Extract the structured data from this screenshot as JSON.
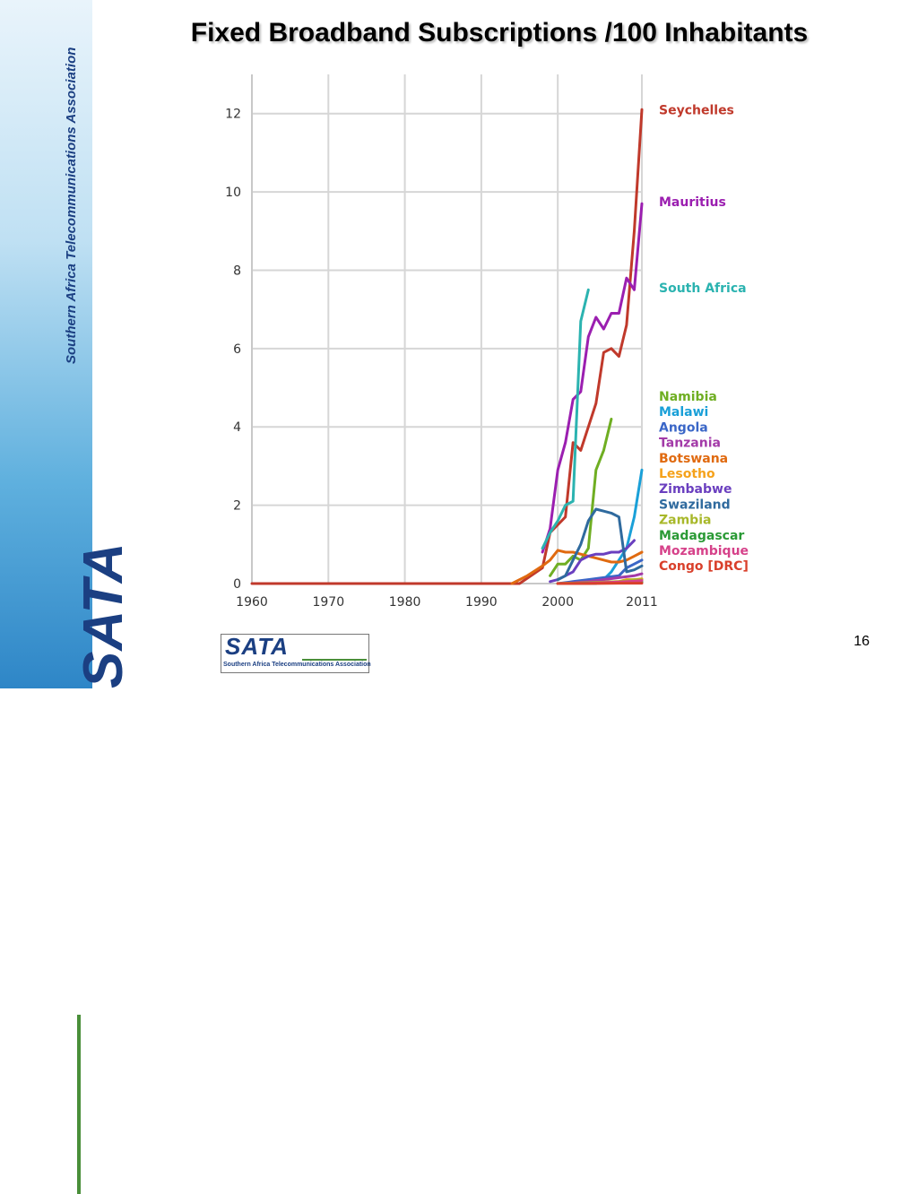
{
  "sidebar": {
    "organization_name": "Southern Africa Telecommunications Association",
    "logo_text": "SATA"
  },
  "slide": {
    "title": "Fixed Broadband Subscriptions /100 Inhabitants",
    "page_number": "16"
  },
  "footer_logo": {
    "text": "SATA",
    "subtitle": "Southern Africa Telecommunications Association"
  },
  "chart_data": {
    "type": "line",
    "title": "Fixed Broadband Subscriptions /100 Inhabitants",
    "xlabel": "",
    "ylabel": "",
    "xlim": [
      1960,
      2011
    ],
    "ylim": [
      0,
      13
    ],
    "x_ticks": [
      1960,
      1970,
      1980,
      1990,
      2000,
      2011
    ],
    "y_ticks": [
      0,
      2,
      4,
      6,
      8,
      10,
      12
    ],
    "grid": true,
    "legend_position": "right",
    "series": [
      {
        "name": "Seychelles",
        "color": "#c0392b",
        "x": [
          1960,
          1995,
          1998,
          1999,
          2000,
          2001,
          2002,
          2003,
          2004,
          2005,
          2006,
          2007,
          2008,
          2009,
          2010,
          2011
        ],
        "y": [
          0,
          0,
          0.4,
          1.3,
          1.5,
          1.7,
          3.6,
          3.4,
          4.0,
          4.6,
          5.9,
          6.0,
          5.8,
          6.6,
          9.0,
          12.1
        ]
      },
      {
        "name": "Mauritius",
        "color": "#9b1fb0",
        "x": [
          1998,
          1999,
          2000,
          2001,
          2002,
          2003,
          2004,
          2005,
          2006,
          2007,
          2008,
          2009,
          2010,
          2011
        ],
        "y": [
          0.8,
          1.4,
          2.9,
          3.6,
          4.7,
          4.9,
          6.3,
          6.8,
          6.5,
          6.9,
          6.9,
          7.8,
          7.5,
          9.7
        ]
      },
      {
        "name": "South Africa",
        "color": "#2bb3b0",
        "x": [
          1998,
          1999,
          2000,
          2001,
          2002,
          2003,
          2004
        ],
        "y": [
          0.9,
          1.3,
          1.6,
          2.0,
          2.1,
          6.7,
          7.5
        ]
      },
      {
        "name": "Namibia",
        "color": "#6fae22",
        "x": [
          1999,
          2000,
          2001,
          2002,
          2003,
          2004,
          2005,
          2006,
          2007
        ],
        "y": [
          0.2,
          0.5,
          0.5,
          0.7,
          0.6,
          0.9,
          2.9,
          3.4,
          4.2
        ]
      },
      {
        "name": "Malawi",
        "color": "#1aa0d8",
        "x": [
          2000,
          2005,
          2006,
          2007,
          2008,
          2009,
          2010,
          2011
        ],
        "y": [
          0.0,
          0.0,
          0.1,
          0.3,
          0.6,
          0.9,
          1.7,
          2.9
        ]
      },
      {
        "name": "Angola",
        "color": "#3a66c7",
        "x": [
          2000,
          2002,
          2004,
          2006,
          2008,
          2009,
          2010,
          2011
        ],
        "y": [
          0.0,
          0.05,
          0.1,
          0.15,
          0.2,
          0.4,
          0.5,
          0.6
        ]
      },
      {
        "name": "Tanzania",
        "color": "#a33aa8",
        "x": [
          2000,
          2002,
          2004,
          2006,
          2008,
          2010,
          2011
        ],
        "y": [
          0.0,
          0.02,
          0.05,
          0.1,
          0.15,
          0.2,
          0.25
        ]
      },
      {
        "name": "Botswana",
        "color": "#e06a10",
        "x": [
          1994,
          1996,
          1998,
          1999,
          2000,
          2001,
          2002,
          2003,
          2004,
          2005,
          2006,
          2007,
          2008,
          2009,
          2010,
          2011
        ],
        "y": [
          0,
          0.2,
          0.45,
          0.6,
          0.85,
          0.8,
          0.8,
          0.75,
          0.7,
          0.65,
          0.6,
          0.55,
          0.55,
          0.6,
          0.7,
          0.8
        ]
      },
      {
        "name": "Lesotho",
        "color": "#f5a21b",
        "x": [
          2000,
          2004,
          2008,
          2009,
          2010,
          2011
        ],
        "y": [
          0.0,
          0.02,
          0.05,
          0.1,
          0.1,
          0.12
        ]
      },
      {
        "name": "Zimbabwe",
        "color": "#6a3fbf",
        "x": [
          1999,
          2000,
          2001,
          2002,
          2003,
          2004,
          2005,
          2006,
          2007,
          2008,
          2009,
          2010
        ],
        "y": [
          0.05,
          0.1,
          0.2,
          0.3,
          0.6,
          0.7,
          0.75,
          0.75,
          0.8,
          0.8,
          0.9,
          1.1
        ]
      },
      {
        "name": "Swaziland",
        "color": "#2f6a9e",
        "x": [
          2000,
          2001,
          2002,
          2003,
          2004,
          2005,
          2006,
          2007,
          2008,
          2009,
          2010,
          2011
        ],
        "y": [
          0.1,
          0.2,
          0.6,
          1.0,
          1.6,
          1.9,
          1.85,
          1.8,
          1.7,
          0.3,
          0.35,
          0.45
        ]
      },
      {
        "name": "Zambia",
        "color": "#a8b82a",
        "x": [
          2000,
          2004,
          2008,
          2010,
          2011
        ],
        "y": [
          0.0,
          0.02,
          0.05,
          0.1,
          0.1
        ]
      },
      {
        "name": "Madagascar",
        "color": "#2a9a35",
        "x": [
          2000,
          2004,
          2008,
          2010,
          2011
        ],
        "y": [
          0.0,
          0.01,
          0.03,
          0.03,
          0.04
        ]
      },
      {
        "name": "Mozambique",
        "color": "#d6428a",
        "x": [
          2000,
          2004,
          2008,
          2010,
          2011
        ],
        "y": [
          0.0,
          0.01,
          0.04,
          0.06,
          0.08
        ]
      },
      {
        "name": "Congo [DRC]",
        "color": "#d9402b",
        "x": [
          2000,
          2004,
          2008,
          2010,
          2011
        ],
        "y": [
          0.0,
          0.0,
          0.01,
          0.01,
          0.01
        ]
      }
    ]
  }
}
